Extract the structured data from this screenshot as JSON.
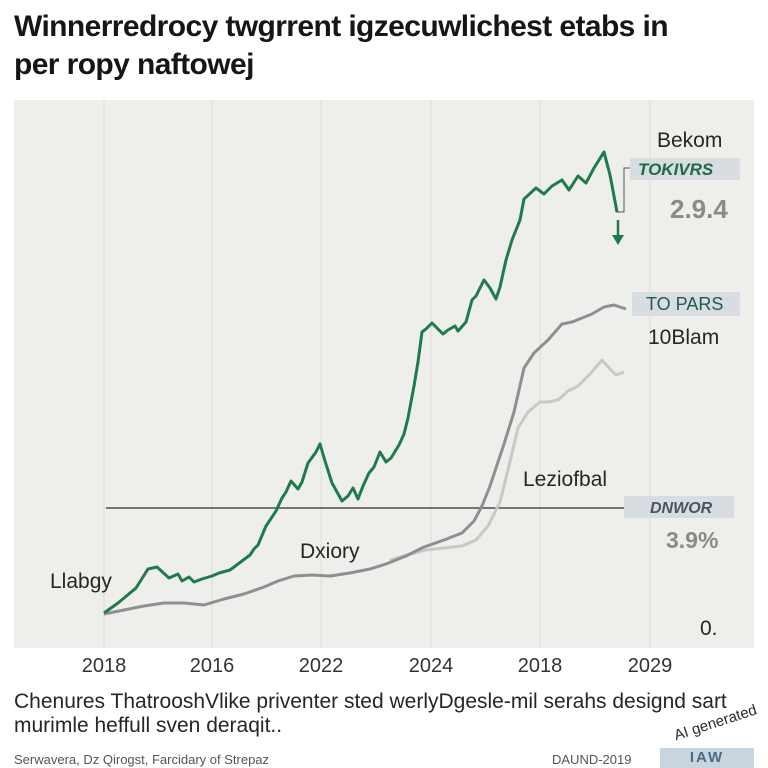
{
  "title": {
    "line1": "Winnerredrocy twgrrent igzecuwlichest etabs in",
    "line2": "per ropy naftowej"
  },
  "caption": {
    "line1": "Chenures ThatrooshVlike priventer sted werlyDgesle-mil serahs designd sart",
    "line2": "murimle heffull sven deraqit.."
  },
  "footer": {
    "source": "Serwavera, Dz Qirogst, Farcidary of Strepaz",
    "date": "DAUND-2019",
    "logo": "IAW",
    "watermark": "AI generated"
  },
  "chart_data": {
    "type": "line",
    "x_tick_labels": [
      "2018",
      "2016",
      "2022",
      "2024",
      "2018",
      "2029"
    ],
    "right_axis_label": "0.",
    "series": [
      {
        "color": "#1f7a4c",
        "values": [
          [
            0,
            0
          ],
          [
            0.03,
            0.03
          ],
          [
            0.06,
            0.08
          ],
          [
            0.085,
            0.09
          ],
          [
            0.09,
            0.1
          ],
          [
            0.1,
            0.12
          ],
          [
            0.11,
            0.12
          ],
          [
            0.13,
            0.09
          ],
          [
            0.14,
            0.08
          ],
          [
            0.16,
            0.07
          ],
          [
            0.17,
            0.08
          ],
          [
            0.18,
            0.06
          ],
          [
            0.195,
            0.05
          ],
          [
            0.22,
            0.06
          ],
          [
            0.25,
            0.07
          ],
          [
            0.28,
            0.09
          ],
          [
            0.31,
            0.12
          ],
          [
            0.34,
            0.17
          ],
          [
            0.36,
            0.22
          ],
          [
            0.37,
            0.24
          ],
          [
            0.385,
            0.27
          ],
          [
            0.4,
            0.3
          ],
          [
            0.41,
            0.32
          ],
          [
            0.42,
            0.3
          ],
          [
            0.43,
            0.29
          ],
          [
            0.44,
            0.35
          ],
          [
            0.45,
            0.38
          ],
          [
            0.46,
            0.4
          ],
          [
            0.47,
            0.45
          ],
          [
            0.48,
            0.42
          ],
          [
            0.49,
            0.37
          ],
          [
            0.5,
            0.32
          ],
          [
            0.51,
            0.3
          ],
          [
            0.52,
            0.31
          ],
          [
            0.535,
            0.28
          ],
          [
            0.55,
            0.3
          ],
          [
            0.56,
            0.32
          ],
          [
            0.57,
            0.34
          ],
          [
            0.58,
            0.36
          ],
          [
            0.59,
            0.38
          ],
          [
            0.6,
            0.4
          ],
          [
            0.61,
            0.41
          ],
          [
            0.62,
            0.43
          ],
          [
            0.63,
            0.45
          ],
          [
            0.64,
            0.52
          ],
          [
            0.65,
            0.6
          ],
          [
            0.66,
            0.68
          ],
          [
            0.68,
            0.72
          ],
          [
            0.7,
            0.73
          ],
          [
            0.72,
            0.74
          ],
          [
            0.74,
            0.73
          ],
          [
            0.76,
            0.74
          ],
          [
            0.78,
            0.76
          ],
          [
            0.8,
            0.79
          ],
          [
            0.82,
            0.77
          ],
          [
            0.84,
            0.8
          ],
          [
            0.86,
            0.83
          ],
          [
            0.88,
            0.85
          ],
          [
            0.9,
            0.86
          ],
          [
            0.92,
            0.88
          ],
          [
            0.94,
            0.9
          ],
          [
            0.955,
            0.92
          ],
          [
            0.965,
            0.93
          ],
          [
            0.98,
            0.95
          ],
          [
            1.0,
            0.98
          ]
        ]
      }
    ],
    "annotations": [
      {
        "text": "Bekom",
        "style": "plain"
      },
      {
        "text": "TOKIVRS",
        "style": "boxed-green"
      },
      {
        "text": "2.9.4",
        "style": "large-grey"
      },
      {
        "text": "TO PARS",
        "style": "boxed-green"
      },
      {
        "text": "10Blam",
        "style": "plain"
      },
      {
        "text": "Leziofbal",
        "style": "plain"
      },
      {
        "text": "DNWOR",
        "style": "boxed-grey"
      },
      {
        "text": "3.9%",
        "style": "large-grey"
      },
      {
        "text": "Dxiory",
        "style": "plain"
      },
      {
        "text": "Llabgy",
        "style": "plain"
      }
    ]
  }
}
